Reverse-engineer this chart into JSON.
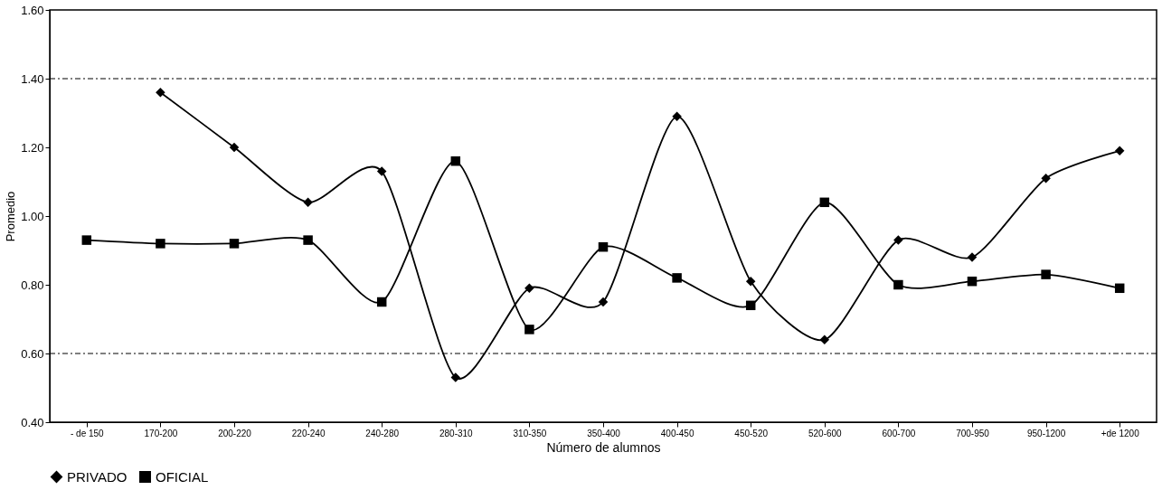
{
  "chart_data": {
    "type": "line",
    "xlabel": "Número de alumnos",
    "ylabel": "Promedio",
    "categories": [
      "- de 150",
      "170-200",
      "200-220",
      "220-240",
      "240-280",
      "280-310",
      "310-350",
      "350-400",
      "400-450",
      "450-520",
      "520-600",
      "600-700",
      "700-950",
      "950-1200",
      "+de 1200"
    ],
    "series": [
      {
        "name": "PRIVADO",
        "color": "#000000",
        "marker": "diamond",
        "values": [
          null,
          1.36,
          1.2,
          1.04,
          1.13,
          0.53,
          0.79,
          0.75,
          1.29,
          0.81,
          0.64,
          0.93,
          0.88,
          1.11,
          1.19
        ]
      },
      {
        "name": "OFICIAL",
        "color": "#000000",
        "marker": "square",
        "values": [
          0.93,
          0.92,
          0.92,
          0.93,
          0.75,
          1.16,
          0.67,
          0.91,
          0.82,
          0.74,
          1.04,
          0.8,
          0.81,
          0.83,
          0.79
        ]
      }
    ],
    "ylim": [
      0.4,
      1.6
    ],
    "yticks": [
      {
        "value": 0.4,
        "label": "0.40"
      },
      {
        "value": 0.6,
        "label": "0.60"
      },
      {
        "value": 0.8,
        "label": "0.80"
      },
      {
        "value": 1.0,
        "label": "1.00"
      },
      {
        "value": 1.2,
        "label": "1.20"
      },
      {
        "value": 1.4,
        "label": "1.40"
      },
      {
        "value": 1.6,
        "label": "1.60"
      }
    ],
    "ref_lines": [
      {
        "axis": "y",
        "value": 1.4,
        "color": "#000000",
        "line_style": "dashed"
      },
      {
        "axis": "y",
        "value": 0.6,
        "color": "#000000",
        "line_style": "dashed"
      }
    ],
    "grid": false,
    "legend": "bottom"
  }
}
